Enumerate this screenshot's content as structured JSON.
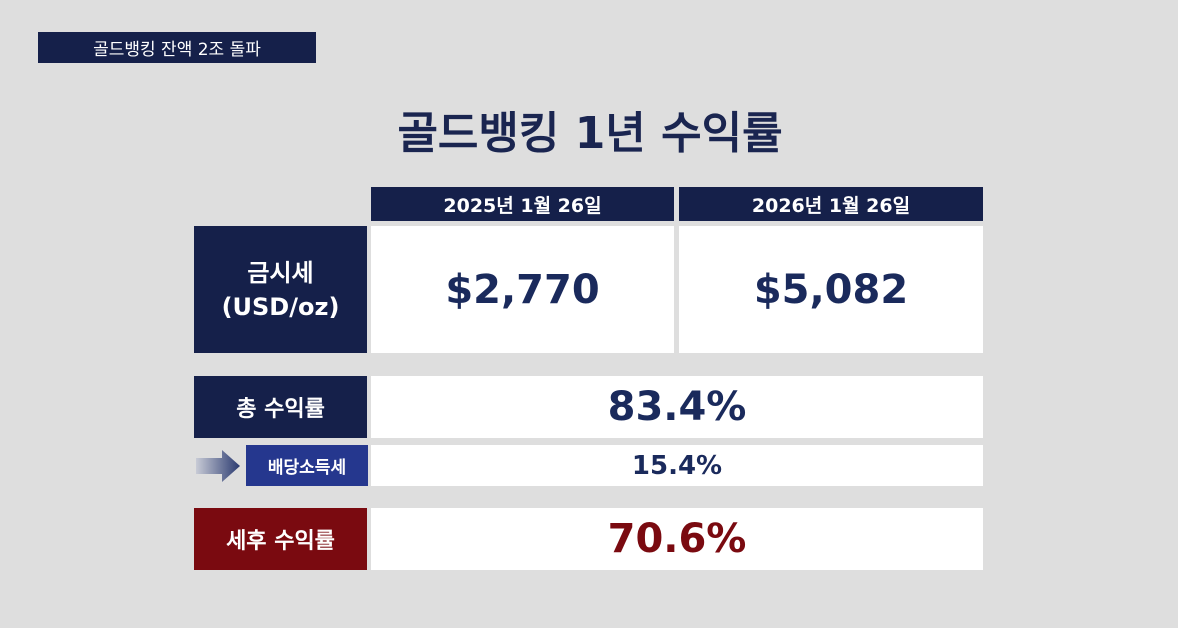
{
  "tag": "골드뱅킹 잔액 2조 돌파",
  "title": "골드뱅킹 1년 수익률",
  "table": {
    "columns": [
      "2025년 1월 26일",
      "2026년 1월 26일"
    ],
    "price": {
      "label": "금시세",
      "unit": "(USD/oz)",
      "values": [
        "$2,770",
        "$5,082"
      ]
    },
    "total_return": {
      "label": "총 수익률",
      "value": "83.4%"
    },
    "dividend_tax": {
      "label": "배당소득세",
      "value": "15.4%"
    },
    "after_tax_return": {
      "label": "세후 수익률",
      "value": "70.6%"
    }
  }
}
